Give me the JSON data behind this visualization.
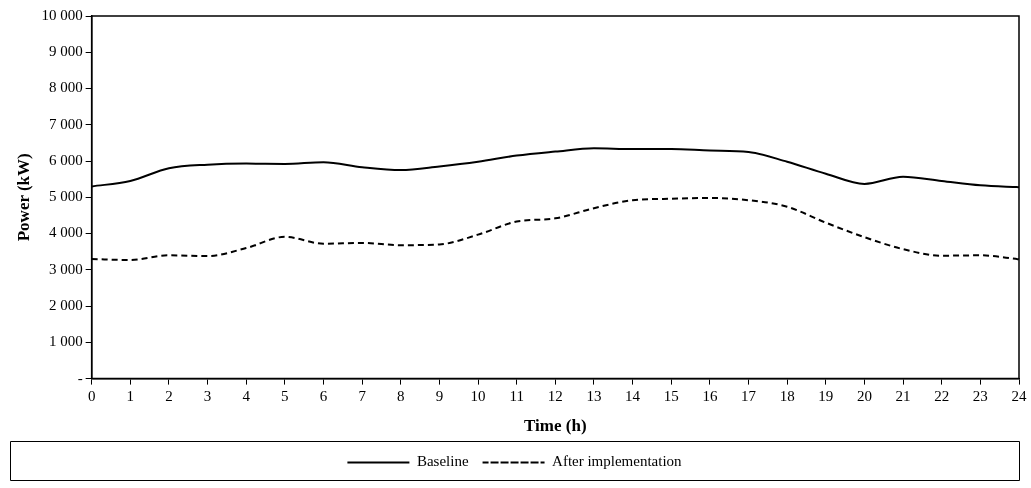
{
  "chart_data": {
    "type": "line",
    "xlabel": "Time (h)",
    "ylabel": "Power (kW)",
    "x": [
      0,
      1,
      2,
      3,
      4,
      5,
      6,
      7,
      8,
      9,
      10,
      11,
      12,
      13,
      14,
      15,
      16,
      17,
      18,
      19,
      20,
      21,
      22,
      23,
      24
    ],
    "series": [
      {
        "name": "Baseline",
        "color": "#000000",
        "line_style": "solid",
        "values": [
          5300,
          5450,
          5800,
          5900,
          5930,
          5920,
          5970,
          5830,
          5750,
          5850,
          5980,
          6150,
          6260,
          6350,
          6330,
          6330,
          6290,
          6250,
          5980,
          5650,
          5370,
          5570,
          5450,
          5330,
          5280
        ]
      },
      {
        "name": "After implementation",
        "color": "#000000",
        "line_style": "dashed",
        "values": [
          3300,
          3270,
          3400,
          3380,
          3600,
          3910,
          3720,
          3740,
          3680,
          3700,
          3970,
          4330,
          4420,
          4700,
          4920,
          4960,
          4980,
          4920,
          4740,
          4300,
          3900,
          3570,
          3390,
          3400,
          3290
        ]
      }
    ],
    "xlim": [
      0,
      24
    ],
    "xticks": [
      0,
      1,
      2,
      3,
      4,
      5,
      6,
      7,
      8,
      9,
      10,
      11,
      12,
      13,
      14,
      15,
      16,
      17,
      18,
      19,
      20,
      21,
      22,
      23,
      24
    ],
    "ylim": [
      0,
      10000
    ],
    "yticks": [
      {
        "value": 0,
        "label": "-"
      },
      {
        "value": 1000,
        "label": "1 000"
      },
      {
        "value": 2000,
        "label": "2 000"
      },
      {
        "value": 3000,
        "label": "3 000"
      },
      {
        "value": 4000,
        "label": "4 000"
      },
      {
        "value": 5000,
        "label": "5 000"
      },
      {
        "value": 6000,
        "label": "6 000"
      },
      {
        "value": 7000,
        "label": "7 000"
      },
      {
        "value": 8000,
        "label": "8 000"
      },
      {
        "value": 9000,
        "label": "9 000"
      },
      {
        "value": 10000,
        "label": "10 000"
      }
    ],
    "grid": false,
    "legend": "bottom",
    "marker": "none"
  }
}
